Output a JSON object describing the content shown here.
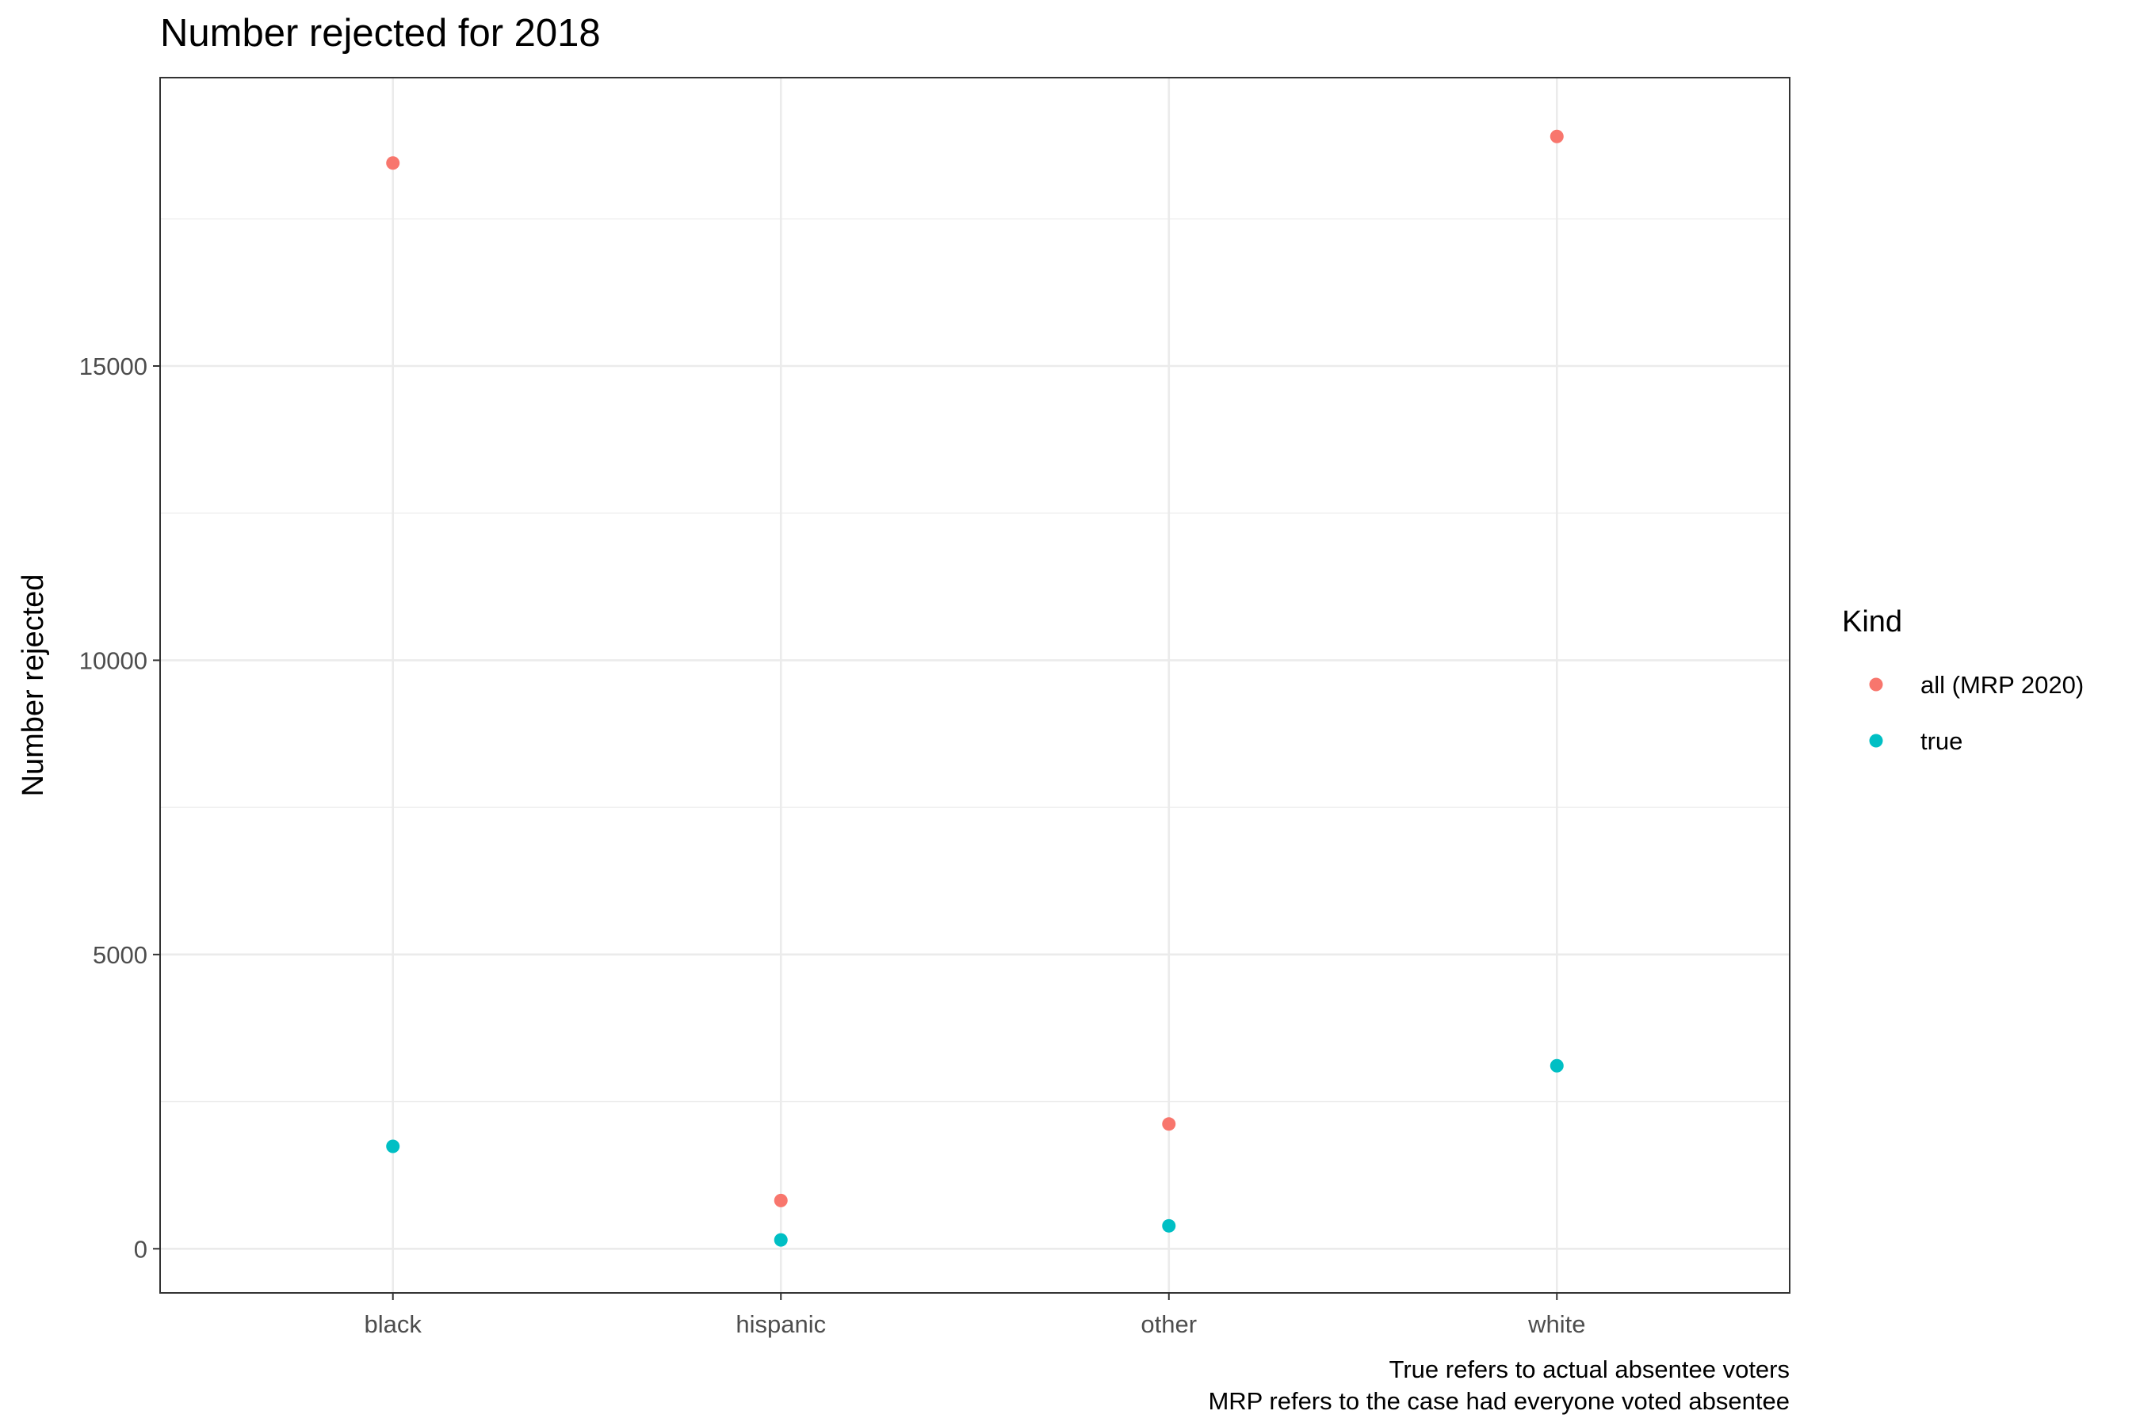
{
  "chart_data": {
    "type": "scatter",
    "title": "Number rejected for 2018",
    "xlabel": "",
    "ylabel": "Number rejected",
    "categories": [
      "black",
      "hispanic",
      "other",
      "white"
    ],
    "y_ticks": [
      0,
      5000,
      10000,
      15000
    ],
    "y_tick_labels": [
      "0",
      "5000",
      "10000",
      "15000"
    ],
    "ylim": [
      -750,
      19900
    ],
    "grid": true,
    "legend": {
      "title": "Kind",
      "position": "right"
    },
    "series": [
      {
        "name": "all (MRP 2020)",
        "color": "#F8766D",
        "values": [
          18450,
          820,
          2120,
          18900
        ]
      },
      {
        "name": "true",
        "color": "#00BFC4",
        "values": [
          1740,
          150,
          390,
          3110
        ]
      }
    ],
    "caption": [
      "True refers to actual absentee voters",
      "MRP refers to the case had everyone voted absentee"
    ]
  }
}
